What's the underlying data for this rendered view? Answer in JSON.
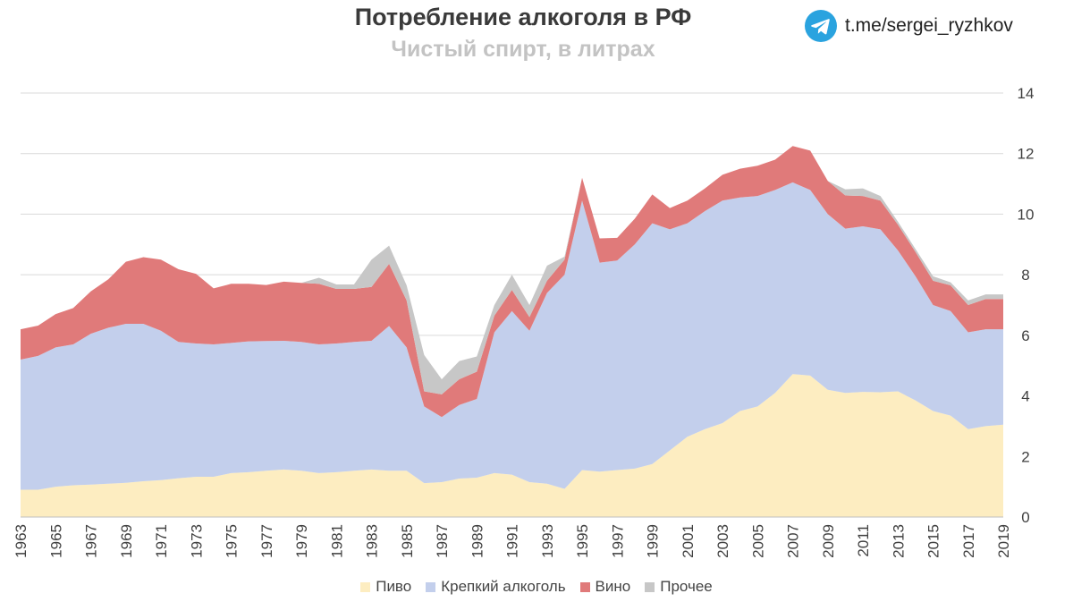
{
  "header": {
    "title": "Потребление алкоголя в РФ",
    "subtitle": "Чистый спирт, в литрах",
    "channel": "t.me/sergei_ryzhkov",
    "channel_icon": "telegram-icon"
  },
  "colors": {
    "beer": "#fdedc1",
    "spirits": "#c3cfec",
    "wine": "#e07a7a",
    "other": "#c7c7c7",
    "grid": "#d9d9d9",
    "axis_text": "#404040",
    "telegram": "#2aa3df"
  },
  "chart_data": {
    "type": "area",
    "stacked": true,
    "title": "Потребление алкоголя в РФ",
    "subtitle": "Чистый спирт, в литрах",
    "x": [
      1963,
      1964,
      1965,
      1966,
      1967,
      1968,
      1969,
      1970,
      1971,
      1972,
      1973,
      1974,
      1975,
      1976,
      1977,
      1978,
      1979,
      1980,
      1981,
      1982,
      1983,
      1984,
      1985,
      1986,
      1987,
      1988,
      1989,
      1990,
      1991,
      1992,
      1993,
      1994,
      1995,
      1996,
      1997,
      1998,
      1999,
      2000,
      2001,
      2002,
      2003,
      2004,
      2005,
      2006,
      2007,
      2008,
      2009,
      2010,
      2011,
      2012,
      2013,
      2014,
      2015,
      2016,
      2017,
      2018,
      2019
    ],
    "x_tick_labels": [
      "1963",
      "1965",
      "1967",
      "1969",
      "1971",
      "1973",
      "1975",
      "1977",
      "1979",
      "1981",
      "1983",
      "1985",
      "1987",
      "1989",
      "1991",
      "1993",
      "1995",
      "1997",
      "1999",
      "2001",
      "2003",
      "2005",
      "2007",
      "2009",
      "2011",
      "2013",
      "2015",
      "2017",
      "2019"
    ],
    "y_tick_labels": [
      "0",
      "2",
      "4",
      "6",
      "8",
      "10",
      "12",
      "14"
    ],
    "ylim": [
      0,
      14
    ],
    "y_axis_position": "right",
    "grid": true,
    "legend_position": "bottom",
    "series": [
      {
        "name": "Пиво",
        "color_key": "beer",
        "values": [
          0.9,
          0.9,
          1.0,
          1.05,
          1.07,
          1.1,
          1.13,
          1.18,
          1.22,
          1.28,
          1.33,
          1.33,
          1.45,
          1.48,
          1.53,
          1.57,
          1.53,
          1.45,
          1.48,
          1.53,
          1.57,
          1.53,
          1.53,
          1.12,
          1.15,
          1.27,
          1.3,
          1.45,
          1.4,
          1.15,
          1.1,
          0.93,
          1.55,
          1.5,
          1.55,
          1.6,
          1.75,
          2.2,
          2.65,
          2.9,
          3.1,
          3.5,
          3.65,
          4.1,
          4.72,
          4.67,
          4.2,
          4.1,
          4.13,
          4.12,
          4.15,
          3.85,
          3.5,
          3.35,
          2.9,
          3.0,
          3.05
        ]
      },
      {
        "name": "Крепкий алкоголь",
        "color_key": "spirits",
        "values": [
          4.3,
          4.42,
          4.6,
          4.65,
          4.98,
          5.15,
          5.25,
          5.2,
          4.93,
          4.5,
          4.4,
          4.37,
          4.3,
          4.32,
          4.28,
          4.25,
          4.25,
          4.25,
          4.25,
          4.25,
          4.25,
          4.78,
          4.07,
          2.53,
          2.15,
          2.43,
          2.6,
          4.65,
          5.4,
          5.0,
          6.3,
          7.07,
          8.9,
          6.9,
          6.92,
          7.4,
          7.95,
          7.3,
          7.05,
          7.2,
          7.35,
          7.05,
          6.95,
          6.7,
          6.33,
          6.13,
          5.8,
          5.42,
          5.47,
          5.38,
          4.65,
          4.1,
          3.5,
          3.45,
          3.2,
          3.2,
          3.15
        ]
      },
      {
        "name": "Вино",
        "color_key": "wine",
        "values": [
          1.0,
          1.0,
          1.1,
          1.2,
          1.4,
          1.6,
          2.05,
          2.2,
          2.35,
          2.4,
          2.3,
          1.85,
          1.95,
          1.9,
          1.85,
          1.95,
          1.95,
          2.0,
          1.8,
          1.75,
          1.78,
          2.05,
          1.55,
          0.5,
          0.75,
          0.85,
          0.9,
          0.55,
          0.7,
          0.45,
          0.4,
          0.5,
          0.75,
          0.8,
          0.75,
          0.85,
          0.95,
          0.7,
          0.75,
          0.75,
          0.85,
          0.95,
          1.0,
          1.0,
          1.2,
          1.3,
          1.1,
          1.1,
          1.0,
          0.95,
          0.85,
          0.8,
          0.8,
          0.85,
          0.9,
          1.0,
          1.0
        ]
      },
      {
        "name": "Прочее",
        "color_key": "other",
        "values": [
          0,
          0,
          0,
          0,
          0,
          0,
          0,
          0,
          0,
          0,
          0,
          0,
          0,
          0,
          0,
          0,
          0,
          0.2,
          0.15,
          0.15,
          0.9,
          0.6,
          0.5,
          1.2,
          0.5,
          0.6,
          0.5,
          0.35,
          0.5,
          0.4,
          0.5,
          0.1,
          0,
          0,
          0,
          0,
          0,
          0,
          0,
          0,
          0,
          0,
          0,
          0,
          0,
          0,
          0,
          0.2,
          0.25,
          0.15,
          0.1,
          0.1,
          0.15,
          0.1,
          0.15,
          0.15,
          0.15
        ]
      }
    ]
  }
}
